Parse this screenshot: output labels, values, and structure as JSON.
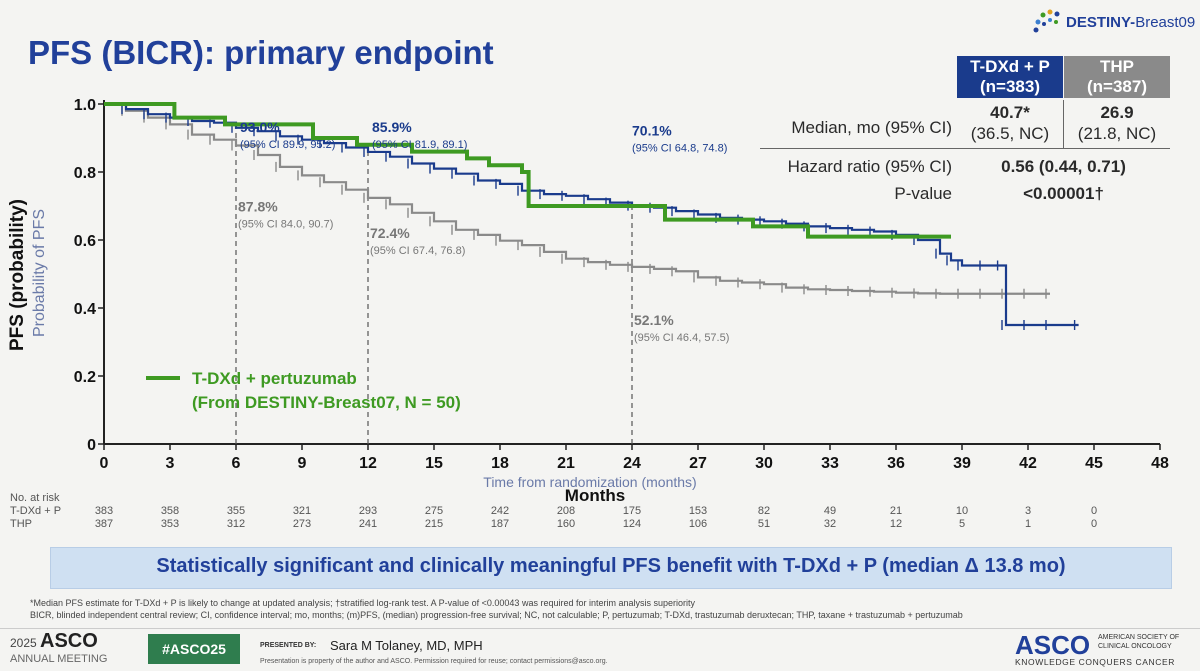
{
  "header": {
    "title": "PFS (BICR): primary endpoint",
    "brand_prefix": "DESTINY-",
    "brand_suffix": "Breast09"
  },
  "summary_table": {
    "col1_header": "T-DXd + P",
    "col1_n": "(n=383)",
    "col2_header": "THP",
    "col2_n": "(n=387)",
    "median_label": "Median, mo (95% CI)",
    "median_col1": "40.7*",
    "median_col1_ci": "(36.5, NC)",
    "median_col2": "26.9",
    "median_col2_ci": "(21.8, NC)",
    "hr_label": "Hazard ratio (95% CI)",
    "hr_value": "0.56 (0.44, 0.71)",
    "p_label": "P-value",
    "p_value": "<0.00001†",
    "col1_color": "#1a3b8c",
    "col2_color": "#8a8a8a"
  },
  "legend": {
    "line1": "T-DXd + pertuzumab",
    "line2": "(From DESTINY-Breast07, N = 50)"
  },
  "chart_data": {
    "type": "line",
    "xlabel": "Months",
    "xlabel_sub": "Time from randomization (months)",
    "ylabel": "PFS (probability)",
    "ylabel_sub": "Probability of PFS",
    "xlim": [
      0,
      48
    ],
    "ylim": [
      0,
      1.0
    ],
    "x_ticks": [
      "0",
      "3",
      "6",
      "9",
      "12",
      "15",
      "18",
      "21",
      "24",
      "27",
      "30",
      "33",
      "36",
      "39",
      "42",
      "45",
      "48"
    ],
    "y_ticks": [
      "0",
      "0.2",
      "0.4",
      "0.6",
      "0.8",
      "1.0"
    ],
    "series": [
      {
        "name": "T-DXd + P",
        "color": "#1a3b8c",
        "x": [
          0,
          1,
          2,
          3,
          4,
          5,
          6,
          7,
          8,
          9,
          10,
          11,
          12,
          13,
          14,
          15,
          16,
          17,
          18,
          19,
          20,
          21,
          22,
          23,
          24,
          25,
          26,
          27,
          28,
          29,
          30,
          31,
          32,
          33,
          34,
          35,
          36,
          37,
          38,
          38.5,
          39,
          40,
          40.8,
          41,
          42,
          43,
          44.3
        ],
        "y": [
          1.0,
          0.985,
          0.97,
          0.96,
          0.95,
          0.945,
          0.93,
          0.92,
          0.905,
          0.895,
          0.885,
          0.872,
          0.859,
          0.845,
          0.825,
          0.81,
          0.795,
          0.775,
          0.765,
          0.745,
          0.735,
          0.73,
          0.72,
          0.71,
          0.701,
          0.695,
          0.685,
          0.675,
          0.665,
          0.66,
          0.655,
          0.648,
          0.64,
          0.635,
          0.63,
          0.625,
          0.615,
          0.6,
          0.56,
          0.54,
          0.525,
          0.525,
          0.525,
          0.35,
          0.35,
          0.35,
          0.35
        ]
      },
      {
        "name": "THP",
        "color": "#8a8a8a",
        "x": [
          0,
          1,
          2,
          3,
          4,
          5,
          6,
          7,
          8,
          9,
          10,
          11,
          12,
          13,
          14,
          15,
          16,
          17,
          18,
          19,
          20,
          21,
          22,
          23,
          24,
          25,
          26,
          27,
          28,
          29,
          30,
          31,
          32,
          33,
          34,
          35,
          36,
          37,
          38,
          39,
          40,
          41,
          42,
          43
        ],
        "y": [
          1.0,
          0.98,
          0.96,
          0.94,
          0.91,
          0.895,
          0.878,
          0.85,
          0.815,
          0.79,
          0.77,
          0.748,
          0.724,
          0.705,
          0.68,
          0.655,
          0.63,
          0.615,
          0.598,
          0.585,
          0.565,
          0.545,
          0.535,
          0.527,
          0.521,
          0.515,
          0.508,
          0.49,
          0.48,
          0.475,
          0.47,
          0.46,
          0.455,
          0.453,
          0.45,
          0.448,
          0.445,
          0.443,
          0.442,
          0.442,
          0.442,
          0.442,
          0.442,
          0.442
        ]
      },
      {
        "name": "T-DXd + pertuzumab (From DESTINY-Breast07, N = 50)",
        "color": "#3e9a22",
        "x": [
          0,
          3.2,
          5.5,
          9.5,
          11.5,
          14,
          16.5,
          17.5,
          19,
          19.3,
          24,
          25.5,
          27,
          29.5,
          32,
          38.5
        ],
        "y": [
          1.0,
          0.96,
          0.94,
          0.9,
          0.88,
          0.86,
          0.84,
          0.82,
          0.8,
          0.7,
          0.7,
          0.66,
          0.66,
          0.64,
          0.61,
          0.61
        ]
      }
    ],
    "annotations": [
      {
        "x": 6,
        "series": "T-DXd + P",
        "value": "93.0%",
        "ci": "(95% CI 89.9, 95.2)"
      },
      {
        "x": 12,
        "series": "T-DXd + P",
        "value": "85.9%",
        "ci": "(95% CI 81.9, 89.1)"
      },
      {
        "x": 24,
        "series": "T-DXd + P",
        "value": "70.1%",
        "ci": "(95% CI 64.8, 74.8)"
      },
      {
        "x": 6,
        "series": "THP",
        "value": "87.8%",
        "ci": "(95% CI 84.0, 90.7)"
      },
      {
        "x": 12,
        "series": "THP",
        "value": "72.4%",
        "ci": "(95% CI 67.4, 76.8)"
      },
      {
        "x": 24,
        "series": "THP",
        "value": "52.1%",
        "ci": "(95% CI 46.4, 57.5)"
      }
    ],
    "grid": false,
    "legend_position": "bottom-left"
  },
  "at_risk": {
    "header": "No. at risk",
    "rows": [
      {
        "label": "T-DXd + P",
        "values": [
          "383",
          "358",
          "355",
          "321",
          "293",
          "275",
          "242",
          "208",
          "175",
          "153",
          "82",
          "49",
          "21",
          "10",
          "3",
          "0"
        ]
      },
      {
        "label": "THP",
        "values": [
          "387",
          "353",
          "312",
          "273",
          "241",
          "215",
          "187",
          "160",
          "124",
          "106",
          "51",
          "32",
          "12",
          "5",
          "1",
          "0"
        ]
      }
    ]
  },
  "banner": "Statistically significant and clinically meaningful PFS benefit with T-DXd + P (median Δ 13.8 mo)",
  "footnotes": [
    "*Median PFS estimate for T-DXd + P is likely to change at updated analysis; †stratified log-rank test. A P-value of <0.00043 was required for interim analysis superiority",
    "BICR, blinded independent central review; CI, confidence interval; mo, months; (m)PFS, (median) progression-free survival; NC, not calculable; P, pertuzumab; T-DXd, trastuzumab deruxtecan; THP, taxane + trastuzumab + pertuzumab"
  ],
  "footer": {
    "year": "2025",
    "asco": "ASCO",
    "annual": "ANNUAL MEETING",
    "hashtag": "#ASCO25",
    "presented_by": "PRESENTED BY:",
    "presenter": "Sara M Tolaney, MD, MPH",
    "disclaimer": "Presentation is property of the author and ASCO. Permission required for reuse; contact permissions@asco.org.",
    "org_line1": "AMERICAN SOCIETY OF",
    "org_line2": "CLINICAL ONCOLOGY",
    "tagline": "KNOWLEDGE CONQUERS CANCER"
  }
}
